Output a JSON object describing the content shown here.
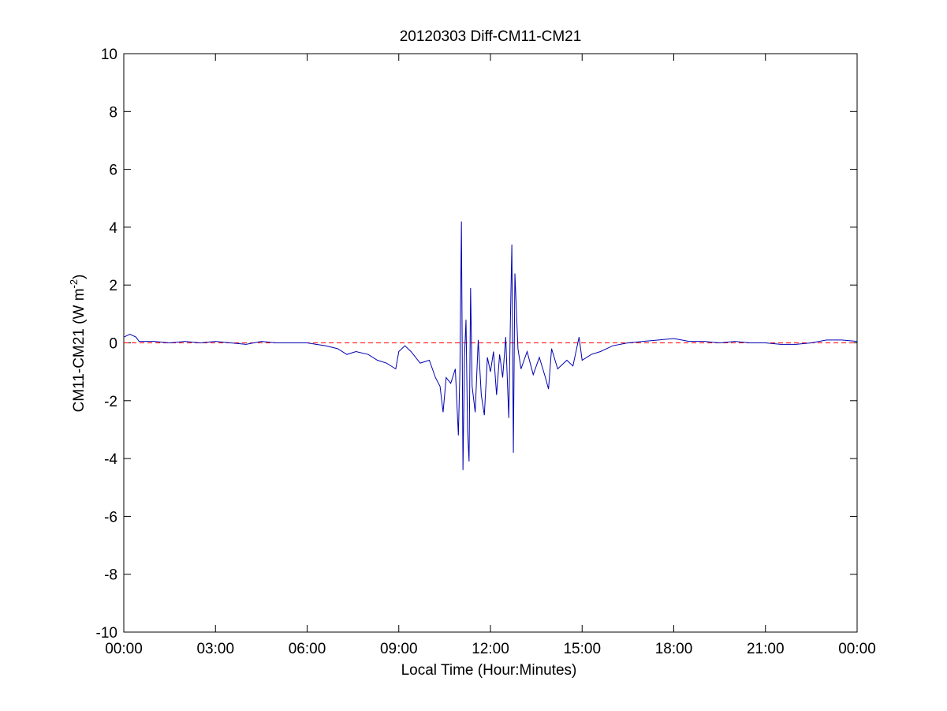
{
  "chart_data": {
    "type": "line",
    "title": "20120303 Diff-CM11-CM21",
    "xlabel": "Local Time (Hour:Minutes)",
    "ylabel": [
      "CM11-CM21 (W m",
      "-2",
      ")"
    ],
    "x": [
      0,
      0.2,
      0.4,
      0.5,
      1,
      1.5,
      2,
      2.5,
      3,
      3.5,
      4,
      4.5,
      5,
      5.5,
      6,
      6.3,
      6.6,
      7,
      7.3,
      7.6,
      8,
      8.3,
      8.6,
      8.9,
      9,
      9.2,
      9.4,
      9.7,
      10,
      10.2,
      10.35,
      10.45,
      10.55,
      10.7,
      10.85,
      10.95,
      11.0,
      11.05,
      11.1,
      11.15,
      11.2,
      11.25,
      11.3,
      11.35,
      11.4,
      11.5,
      11.6,
      11.7,
      11.8,
      11.9,
      12.0,
      12.1,
      12.2,
      12.3,
      12.4,
      12.5,
      12.6,
      12.65,
      12.7,
      12.75,
      12.8,
      12.9,
      13.0,
      13.2,
      13.4,
      13.6,
      13.8,
      13.9,
      14.0,
      14.2,
      14.5,
      14.7,
      14.9,
      15.0,
      15.3,
      15.6,
      16,
      16.5,
      17,
      17.5,
      18,
      18.5,
      19,
      19.5,
      20,
      20.5,
      21,
      21.5,
      22,
      22.5,
      23,
      23.5,
      24
    ],
    "series": [
      {
        "color": "#0000b0",
        "values": [
          0.2,
          0.3,
          0.2,
          0.05,
          0.05,
          0.0,
          0.05,
          0.0,
          0.05,
          0.0,
          -0.05,
          0.05,
          0.0,
          0.0,
          0.0,
          -0.05,
          -0.1,
          -0.2,
          -0.4,
          -0.3,
          -0.4,
          -0.6,
          -0.7,
          -0.9,
          -0.3,
          -0.1,
          -0.3,
          -0.7,
          -0.6,
          -1.2,
          -1.5,
          -2.4,
          -1.2,
          -1.4,
          -0.9,
          -3.2,
          -1.0,
          4.2,
          -4.4,
          -0.5,
          0.8,
          -3.0,
          -4.1,
          1.9,
          -1.5,
          -2.4,
          0.1,
          -1.8,
          -2.5,
          -0.5,
          -1.0,
          -0.3,
          -1.8,
          -0.4,
          -1.2,
          0.2,
          -2.6,
          0.6,
          3.4,
          -3.8,
          2.4,
          -0.2,
          -0.9,
          -0.3,
          -1.1,
          -0.5,
          -1.2,
          -1.6,
          -0.2,
          -0.9,
          -0.6,
          -0.8,
          0.2,
          -0.6,
          -0.4,
          -0.3,
          -0.1,
          0.0,
          0.05,
          0.1,
          0.15,
          0.05,
          0.05,
          0.0,
          0.05,
          0.0,
          0.0,
          -0.05,
          -0.05,
          0.0,
          0.1,
          0.1,
          0.05
        ]
      }
    ],
    "hline": {
      "value": 0,
      "color": "#ff0000"
    },
    "xlim": [
      0,
      24
    ],
    "xticks": [
      {
        "value": 0,
        "label": "00:00"
      },
      {
        "value": 3,
        "label": "03:00"
      },
      {
        "value": 6,
        "label": "06:00"
      },
      {
        "value": 9,
        "label": "09:00"
      },
      {
        "value": 12,
        "label": "12:00"
      },
      {
        "value": 15,
        "label": "15:00"
      },
      {
        "value": 18,
        "label": "18:00"
      },
      {
        "value": 21,
        "label": "21:00"
      },
      {
        "value": 24,
        "label": "00:00"
      }
    ],
    "ylim": [
      -10,
      10
    ],
    "yticks": [
      -10,
      -8,
      -6,
      -4,
      -2,
      0,
      2,
      4,
      6,
      8,
      10
    ],
    "grid": false
  }
}
